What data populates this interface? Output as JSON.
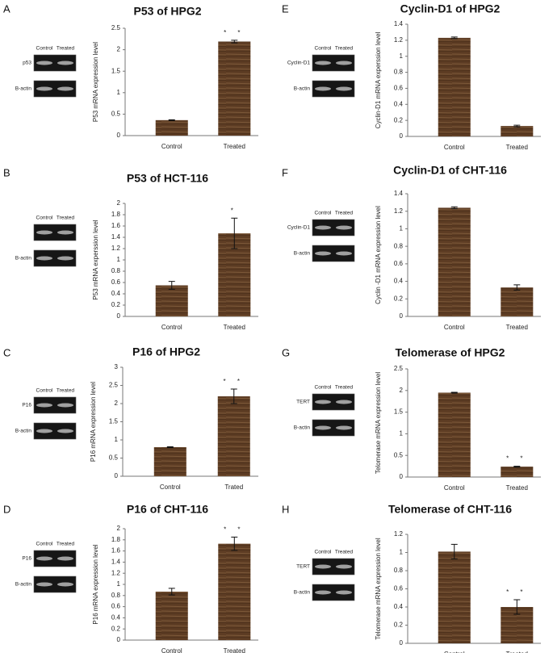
{
  "chart_data": [
    {
      "type": "bar",
      "panel": "A",
      "title": "P53 of HPG2",
      "y_label": "P53 mRNA expression level",
      "categories": [
        "Control",
        "Treated"
      ],
      "values": [
        0.36,
        2.19
      ],
      "errors": [
        0.01,
        0.03
      ],
      "annotation": "* *",
      "color": "#5e3d24",
      "ylim": [
        0,
        2.5
      ],
      "yticks": [
        0,
        0.5,
        1,
        1.5,
        2,
        2.5
      ],
      "gel": {
        "columns": [
          "Control",
          "Treated"
        ],
        "rows": [
          "p53",
          "B-actin"
        ]
      }
    },
    {
      "type": "bar",
      "panel": "B",
      "title": "P53 of HCT-116",
      "y_label": "P53 mRNA experssion level",
      "categories": [
        "Control",
        "Treated"
      ],
      "values": [
        0.55,
        1.47
      ],
      "errors": [
        0.07,
        0.27
      ],
      "annotation": "*",
      "color": "#5e3d24",
      "ylim": [
        0,
        2
      ],
      "yticks": [
        0,
        0.2,
        0.4,
        0.6,
        0.8,
        1,
        1.2,
        1.4,
        1.6,
        1.8,
        2
      ],
      "gel": {
        "columns": [
          "Control",
          "Treated"
        ],
        "rows": [
          null,
          "B-actin"
        ]
      }
    },
    {
      "type": "bar",
      "panel": "C",
      "title": "P16 of HPG2",
      "y_label": "P16 mRNA expression level",
      "categories": [
        "Control",
        "Trated"
      ],
      "values": [
        0.8,
        2.2
      ],
      "errors": [
        0.01,
        0.2
      ],
      "annotation": "* *",
      "color": "#5e3d24",
      "ylim": [
        0,
        3
      ],
      "yticks": [
        0,
        0.5,
        1,
        1.5,
        2,
        2.5,
        3
      ],
      "gel": {
        "columns": [
          "Control",
          "Treated"
        ],
        "rows": [
          "P16",
          "B-actin"
        ]
      }
    },
    {
      "type": "bar",
      "panel": "D",
      "title": "P16 of CHT-116",
      "y_label": "P16 mRNA expression level",
      "categories": [
        "Control",
        "Treated"
      ],
      "values": [
        0.87,
        1.73
      ],
      "errors": [
        0.06,
        0.12
      ],
      "annotation": "* *",
      "color": "#5e3d24",
      "ylim": [
        0,
        2
      ],
      "yticks": [
        0,
        0.2,
        0.4,
        0.6,
        0.8,
        1,
        1.2,
        1.4,
        1.6,
        1.8,
        2
      ],
      "gel": {
        "columns": [
          "Control",
          "Treated"
        ],
        "rows": [
          "P16",
          "B-actin"
        ]
      }
    },
    {
      "type": "bar",
      "panel": "E",
      "title": "Cyclin-D1 of HPG2",
      "y_label": "Cyclin-D1 mRNA experssion level",
      "categories": [
        "Control",
        "Treated"
      ],
      "values": [
        1.23,
        0.13
      ],
      "errors": [
        0.01,
        0.01
      ],
      "annotation": null,
      "color": "#5e3d24",
      "ylim": [
        0,
        1.4
      ],
      "yticks": [
        0,
        0.2,
        0.4,
        0.6,
        0.8,
        1,
        1.2,
        1.4
      ],
      "gel": {
        "columns": [
          "Control",
          "Treated"
        ],
        "rows": [
          "Cyclin-D1",
          "B-actin"
        ]
      }
    },
    {
      "type": "bar",
      "panel": "F",
      "title": "Cyclin-D1 of CHT-116",
      "y_label": "Cyclin -D1 mRNA expression level",
      "categories": [
        "Control",
        "Treated"
      ],
      "values": [
        1.24,
        0.33
      ],
      "errors": [
        0.01,
        0.03
      ],
      "annotation": null,
      "color": "#5e3d24",
      "ylim": [
        0,
        1.4
      ],
      "yticks": [
        0,
        0.2,
        0.4,
        0.6,
        0.8,
        1,
        1.2,
        1.4
      ],
      "gel": {
        "columns": [
          "Control",
          "Treated"
        ],
        "rows": [
          "Cyclin-D1",
          "B-actin"
        ]
      }
    },
    {
      "type": "bar",
      "panel": "G",
      "title": "Telomerase of HPG2",
      "y_label": "Telomerase mRNA expression level",
      "categories": [
        "Control",
        "Treated"
      ],
      "values": [
        1.95,
        0.24
      ],
      "errors": [
        0.01,
        0.01
      ],
      "annotation": "* *",
      "color": "#5e3d24",
      "ylim": [
        0,
        2.5
      ],
      "yticks": [
        0,
        0.5,
        1,
        1.5,
        2,
        2.5
      ],
      "gel": {
        "columns": [
          "Control",
          "Treated"
        ],
        "rows": [
          "TERT",
          "B-actin"
        ]
      }
    },
    {
      "type": "bar",
      "panel": "H",
      "title": "Telomerase of CHT-116",
      "y_label": "Telomerase mRNA expression level",
      "categories": [
        "Control",
        "Treated"
      ],
      "values": [
        1.01,
        0.4
      ],
      "errors": [
        0.08,
        0.08
      ],
      "annotation": "* *",
      "color": "#5e3d24",
      "ylim": [
        0,
        1.2
      ],
      "yticks": [
        0,
        0.2,
        0.4,
        0.6,
        0.8,
        1,
        1.2
      ],
      "gel": {
        "columns": [
          "Control",
          "Treated"
        ],
        "rows": [
          "TERT",
          "B-actin"
        ]
      }
    }
  ]
}
